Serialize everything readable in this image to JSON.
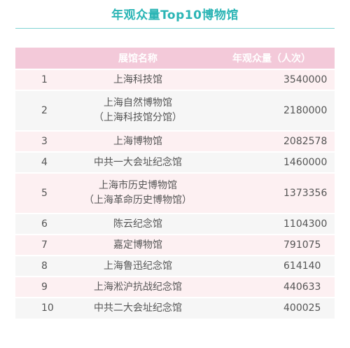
{
  "title": "年观众量Top10博物馆",
  "chart_data": {
    "type": "table",
    "title": "年观众量Top10博物馆",
    "columns": [
      "",
      "展馆名称",
      "年观众量（人次）"
    ],
    "rows": [
      {
        "rank": "1",
        "name": [
          "上海科技馆"
        ],
        "value": "3540000"
      },
      {
        "rank": "2",
        "name": [
          "上海自然博物馆",
          "（上海科技馆分馆）"
        ],
        "value": "2180000"
      },
      {
        "rank": "3",
        "name": [
          "上海博物馆"
        ],
        "value": "2082578"
      },
      {
        "rank": "4",
        "name": [
          "中共一大会址纪念馆"
        ],
        "value": "1460000"
      },
      {
        "rank": "5",
        "name": [
          "上海市历史博物馆",
          "（上海革命历史博物馆）"
        ],
        "value": "1373356"
      },
      {
        "rank": "6",
        "name": [
          "陈云纪念馆"
        ],
        "value": "1104300"
      },
      {
        "rank": "7",
        "name": [
          "嘉定博物馆"
        ],
        "value": "791075"
      },
      {
        "rank": "8",
        "name": [
          "上海鲁迅纪念馆"
        ],
        "value": "614140"
      },
      {
        "rank": "9",
        "name": [
          "上海淞沪抗战纪念馆"
        ],
        "value": "440633"
      },
      {
        "rank": "10",
        "name": [
          "中共二大会址纪念馆"
        ],
        "value": "400025"
      }
    ]
  },
  "colors": {
    "title": "#2bb5b5",
    "header_bg": "#f3c9d9",
    "row_odd_bg": "#fdf0f2",
    "row_even_bg": "#f6f6f6",
    "text": "#555555"
  }
}
